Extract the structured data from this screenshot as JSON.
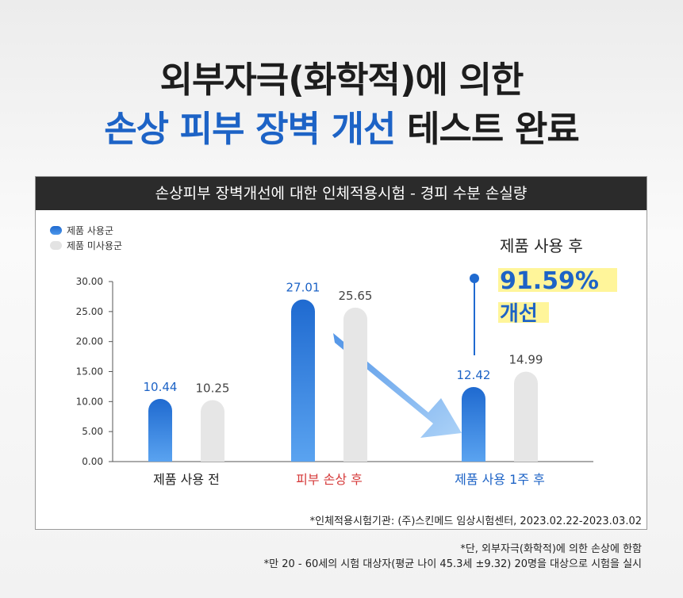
{
  "headline": {
    "line1": "외부자극(화학적)에 의한",
    "line2_blue": "손상 피부 장벽 개선",
    "line2_dark": " 테스트 완료"
  },
  "card": {
    "title": "손상피부 장벽개선에 대한 인체적용시험 - 경피 수분 손실량",
    "source": "*인체적용시험기관: (주)스킨메드 임상시험센터, 2023.02.22-2023.03.02"
  },
  "callout": {
    "line1": "제품 사용 후",
    "value": "91.59%",
    "line3": "개선"
  },
  "footnotes": {
    "note1": "*단, 외부자극(화학적)에 의한 손상에 한함",
    "note2": "*만 20 - 60세의 시험 대상자(평균 나이 45.3세 ±9.32) 20명을 대상으로 시험을 실시"
  },
  "colors": {
    "blue": "#1f6ad0",
    "blue_light": "#5aa3f0",
    "gray_bar": "#e6e6e6",
    "red_label": "#d63b3b",
    "blue_label": "#1d63c6"
  },
  "chart_data": {
    "type": "bar",
    "categories": [
      "제품 사용 전",
      "피부 손상 후",
      "제품 사용 1주 후"
    ],
    "category_colors": [
      "#222222",
      "#d63b3b",
      "#1d63c6"
    ],
    "series": [
      {
        "name": "제품 사용군",
        "values": [
          10.44,
          27.01,
          12.42
        ],
        "labels": [
          "10.44",
          "27.01",
          "12.42"
        ],
        "color": "#1f6ad0"
      },
      {
        "name": "제품 미사용군",
        "values": [
          10.25,
          25.65,
          14.99
        ],
        "labels": [
          "10.25",
          "25.65",
          "14.99"
        ],
        "color": "#e6e6e6"
      }
    ],
    "yticks": [
      "0.00",
      "5.00",
      "10.00",
      "15.00",
      "20.00",
      "25.00",
      "30.00"
    ],
    "ylim": [
      0,
      30
    ],
    "legend": "top-left",
    "grid": false
  }
}
